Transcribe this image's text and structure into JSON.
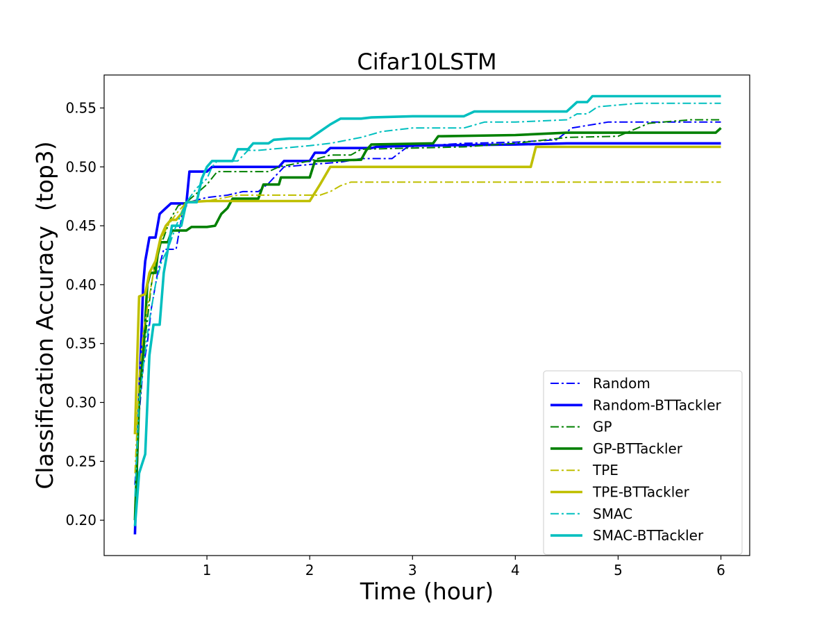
{
  "chart_data": {
    "type": "line",
    "title": "Cifar10LSTM",
    "xlabel": "Time (hour)",
    "ylabel": "Classification Accuracy  (top3)",
    "xlim": [
      0.0,
      6.28
    ],
    "ylim": [
      0.17,
      0.578
    ],
    "xticks": [
      1,
      2,
      3,
      4,
      5,
      6
    ],
    "yticks": [
      0.2,
      0.25,
      0.3,
      0.35,
      0.4,
      0.45,
      0.5,
      0.55
    ],
    "ytick_labels": [
      "0.20",
      "0.25",
      "0.30",
      "0.35",
      "0.40",
      "0.45",
      "0.50",
      "0.55"
    ],
    "grid": false,
    "legend_position": "lower-right",
    "series": [
      {
        "name": "Random",
        "color": "#0000ff",
        "style": "dashdot",
        "points": [
          [
            0.3,
            0.23
          ],
          [
            0.34,
            0.29
          ],
          [
            0.38,
            0.33
          ],
          [
            0.42,
            0.35
          ],
          [
            0.46,
            0.38
          ],
          [
            0.52,
            0.41
          ],
          [
            0.58,
            0.43
          ],
          [
            0.7,
            0.43
          ],
          [
            0.76,
            0.46
          ],
          [
            0.82,
            0.47
          ],
          [
            1.0,
            0.474
          ],
          [
            1.2,
            0.476
          ],
          [
            1.35,
            0.479
          ],
          [
            1.5,
            0.479
          ],
          [
            1.6,
            0.486
          ],
          [
            1.75,
            0.5
          ],
          [
            2.0,
            0.502
          ],
          [
            2.3,
            0.504
          ],
          [
            2.5,
            0.507
          ],
          [
            2.6,
            0.507
          ],
          [
            2.8,
            0.507
          ],
          [
            2.95,
            0.517
          ],
          [
            3.5,
            0.52
          ],
          [
            4.0,
            0.521
          ],
          [
            4.4,
            0.523
          ],
          [
            4.55,
            0.533
          ],
          [
            4.9,
            0.538
          ],
          [
            5.5,
            0.538
          ],
          [
            6.0,
            0.538
          ]
        ]
      },
      {
        "name": "Random-BTTackler",
        "color": "#0000ff",
        "style": "solid",
        "points": [
          [
            0.3,
            0.188
          ],
          [
            0.33,
            0.28
          ],
          [
            0.36,
            0.35
          ],
          [
            0.38,
            0.4
          ],
          [
            0.4,
            0.42
          ],
          [
            0.44,
            0.44
          ],
          [
            0.5,
            0.44
          ],
          [
            0.54,
            0.46
          ],
          [
            0.6,
            0.465
          ],
          [
            0.65,
            0.469
          ],
          [
            0.8,
            0.469
          ],
          [
            0.83,
            0.496
          ],
          [
            1.0,
            0.496
          ],
          [
            1.05,
            0.5
          ],
          [
            1.7,
            0.5
          ],
          [
            1.75,
            0.505
          ],
          [
            2.0,
            0.505
          ],
          [
            2.05,
            0.512
          ],
          [
            2.15,
            0.512
          ],
          [
            2.2,
            0.516
          ],
          [
            2.6,
            0.516
          ],
          [
            2.65,
            0.517
          ],
          [
            3.0,
            0.518
          ],
          [
            4.0,
            0.519
          ],
          [
            4.5,
            0.52
          ],
          [
            6.0,
            0.52
          ]
        ]
      },
      {
        "name": "GP",
        "color": "#008000",
        "style": "dashdot",
        "points": [
          [
            0.3,
            0.21
          ],
          [
            0.34,
            0.3
          ],
          [
            0.38,
            0.34
          ],
          [
            0.42,
            0.37
          ],
          [
            0.46,
            0.4
          ],
          [
            0.52,
            0.43
          ],
          [
            0.58,
            0.44
          ],
          [
            0.64,
            0.455
          ],
          [
            0.72,
            0.467
          ],
          [
            0.8,
            0.47
          ],
          [
            1.0,
            0.485
          ],
          [
            1.1,
            0.496
          ],
          [
            1.3,
            0.496
          ],
          [
            1.6,
            0.496
          ],
          [
            1.7,
            0.5
          ],
          [
            2.0,
            0.505
          ],
          [
            2.2,
            0.51
          ],
          [
            2.4,
            0.51
          ],
          [
            2.5,
            0.515
          ],
          [
            3.0,
            0.516
          ],
          [
            3.5,
            0.517
          ],
          [
            4.0,
            0.52
          ],
          [
            4.5,
            0.525
          ],
          [
            5.0,
            0.526
          ],
          [
            5.3,
            0.537
          ],
          [
            5.7,
            0.54
          ],
          [
            6.0,
            0.54
          ]
        ]
      },
      {
        "name": "GP-BTTackler",
        "color": "#008000",
        "style": "solid",
        "points": [
          [
            0.3,
            0.2
          ],
          [
            0.34,
            0.3
          ],
          [
            0.38,
            0.34
          ],
          [
            0.42,
            0.4
          ],
          [
            0.45,
            0.41
          ],
          [
            0.5,
            0.41
          ],
          [
            0.52,
            0.425
          ],
          [
            0.55,
            0.436
          ],
          [
            0.62,
            0.436
          ],
          [
            0.66,
            0.446
          ],
          [
            0.8,
            0.446
          ],
          [
            0.85,
            0.449
          ],
          [
            1.0,
            0.449
          ],
          [
            1.08,
            0.45
          ],
          [
            1.14,
            0.46
          ],
          [
            1.2,
            0.465
          ],
          [
            1.25,
            0.473
          ],
          [
            1.5,
            0.473
          ],
          [
            1.55,
            0.485
          ],
          [
            1.7,
            0.485
          ],
          [
            1.72,
            0.491
          ],
          [
            2.0,
            0.491
          ],
          [
            2.05,
            0.505
          ],
          [
            2.5,
            0.506
          ],
          [
            2.55,
            0.514
          ],
          [
            2.6,
            0.519
          ],
          [
            3.2,
            0.52
          ],
          [
            3.25,
            0.526
          ],
          [
            4.0,
            0.527
          ],
          [
            4.5,
            0.529
          ],
          [
            5.0,
            0.529
          ],
          [
            5.95,
            0.529
          ],
          [
            6.0,
            0.533
          ]
        ]
      },
      {
        "name": "TPE",
        "color": "#bfbf00",
        "style": "dashdot",
        "points": [
          [
            0.3,
            0.24
          ],
          [
            0.34,
            0.32
          ],
          [
            0.38,
            0.36
          ],
          [
            0.42,
            0.38
          ],
          [
            0.46,
            0.4
          ],
          [
            0.5,
            0.42
          ],
          [
            0.56,
            0.44
          ],
          [
            0.62,
            0.45
          ],
          [
            0.7,
            0.46
          ],
          [
            0.8,
            0.47
          ],
          [
            1.0,
            0.471
          ],
          [
            1.3,
            0.476
          ],
          [
            2.0,
            0.476
          ],
          [
            2.1,
            0.476
          ],
          [
            2.2,
            0.479
          ],
          [
            2.3,
            0.484
          ],
          [
            2.4,
            0.487
          ],
          [
            6.0,
            0.487
          ]
        ]
      },
      {
        "name": "TPE-BTTackler",
        "color": "#bfbf00",
        "style": "solid",
        "points": [
          [
            0.3,
            0.273
          ],
          [
            0.34,
            0.39
          ],
          [
            0.4,
            0.392
          ],
          [
            0.44,
            0.41
          ],
          [
            0.5,
            0.42
          ],
          [
            0.55,
            0.44
          ],
          [
            0.6,
            0.45
          ],
          [
            0.65,
            0.455
          ],
          [
            0.7,
            0.455
          ],
          [
            0.75,
            0.46
          ],
          [
            0.8,
            0.47
          ],
          [
            1.0,
            0.471
          ],
          [
            2.0,
            0.471
          ],
          [
            2.1,
            0.485
          ],
          [
            2.2,
            0.5
          ],
          [
            4.15,
            0.5
          ],
          [
            4.2,
            0.517
          ],
          [
            6.0,
            0.517
          ]
        ]
      },
      {
        "name": "SMAC",
        "color": "#00bfbf",
        "style": "dashdot",
        "points": [
          [
            0.3,
            0.22
          ],
          [
            0.34,
            0.3
          ],
          [
            0.38,
            0.33
          ],
          [
            0.44,
            0.37
          ],
          [
            0.5,
            0.4
          ],
          [
            0.56,
            0.42
          ],
          [
            0.62,
            0.43
          ],
          [
            0.7,
            0.45
          ],
          [
            0.8,
            0.47
          ],
          [
            0.9,
            0.482
          ],
          [
            1.0,
            0.49
          ],
          [
            1.05,
            0.5
          ],
          [
            1.1,
            0.505
          ],
          [
            1.3,
            0.505
          ],
          [
            1.4,
            0.514
          ],
          [
            1.5,
            0.514
          ],
          [
            2.0,
            0.518
          ],
          [
            2.2,
            0.52
          ],
          [
            2.5,
            0.525
          ],
          [
            2.7,
            0.53
          ],
          [
            3.0,
            0.533
          ],
          [
            3.5,
            0.533
          ],
          [
            3.7,
            0.538
          ],
          [
            4.0,
            0.538
          ],
          [
            4.5,
            0.54
          ],
          [
            4.6,
            0.545
          ],
          [
            4.7,
            0.545
          ],
          [
            4.8,
            0.551
          ],
          [
            5.2,
            0.554
          ],
          [
            5.5,
            0.554
          ],
          [
            6.0,
            0.554
          ]
        ]
      },
      {
        "name": "SMAC-BTTackler",
        "color": "#00bfbf",
        "style": "solid",
        "points": [
          [
            0.3,
            0.195
          ],
          [
            0.34,
            0.24
          ],
          [
            0.4,
            0.256
          ],
          [
            0.44,
            0.34
          ],
          [
            0.48,
            0.366
          ],
          [
            0.54,
            0.366
          ],
          [
            0.58,
            0.41
          ],
          [
            0.62,
            0.43
          ],
          [
            0.66,
            0.45
          ],
          [
            0.75,
            0.45
          ],
          [
            0.8,
            0.47
          ],
          [
            0.9,
            0.47
          ],
          [
            0.95,
            0.49
          ],
          [
            1.0,
            0.5
          ],
          [
            1.05,
            0.505
          ],
          [
            1.25,
            0.505
          ],
          [
            1.3,
            0.515
          ],
          [
            1.4,
            0.515
          ],
          [
            1.45,
            0.52
          ],
          [
            1.6,
            0.52
          ],
          [
            1.65,
            0.523
          ],
          [
            1.8,
            0.524
          ],
          [
            2.0,
            0.524
          ],
          [
            2.1,
            0.53
          ],
          [
            2.2,
            0.536
          ],
          [
            2.3,
            0.541
          ],
          [
            2.5,
            0.541
          ],
          [
            2.6,
            0.542
          ],
          [
            3.0,
            0.543
          ],
          [
            3.5,
            0.543
          ],
          [
            3.6,
            0.547
          ],
          [
            4.0,
            0.547
          ],
          [
            4.5,
            0.547
          ],
          [
            4.6,
            0.555
          ],
          [
            4.7,
            0.555
          ],
          [
            4.75,
            0.56
          ],
          [
            5.0,
            0.56
          ],
          [
            6.0,
            0.56
          ]
        ]
      }
    ]
  }
}
